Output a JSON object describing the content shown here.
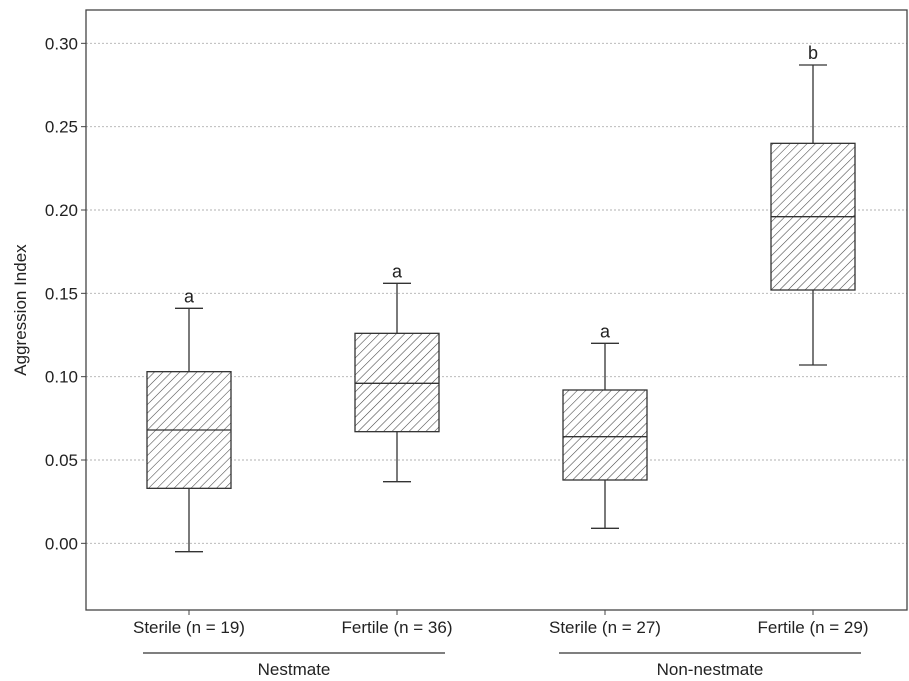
{
  "chart_data": {
    "type": "boxplot",
    "ylabel": "Aggression Index",
    "ylim": [
      -0.04,
      0.32
    ],
    "yticks": [
      "0.00",
      "0.05",
      "0.10",
      "0.15",
      "0.20",
      "0.25",
      "0.30"
    ],
    "ytick_values": [
      0.0,
      0.05,
      0.1,
      0.15,
      0.2,
      0.25,
      0.3
    ],
    "grid": true,
    "categories": [
      "Sterile (n = 19)",
      "Fertile (n = 36)",
      "Sterile (n = 27)",
      "Fertile (n = 29)"
    ],
    "groups": [
      {
        "label": "Nestmate",
        "categories": [
          0,
          1
        ]
      },
      {
        "label": "Non-nestmate",
        "categories": [
          2,
          3
        ]
      }
    ],
    "boxes": [
      {
        "whisker_low": -0.005,
        "q1": 0.033,
        "median": 0.068,
        "q3": 0.103,
        "whisker_high": 0.141,
        "letter": "a"
      },
      {
        "whisker_low": 0.037,
        "q1": 0.067,
        "median": 0.096,
        "q3": 0.126,
        "whisker_high": 0.156,
        "letter": "a"
      },
      {
        "whisker_low": 0.009,
        "q1": 0.038,
        "median": 0.064,
        "q3": 0.092,
        "whisker_high": 0.12,
        "letter": "a"
      },
      {
        "whisker_low": 0.107,
        "q1": 0.152,
        "median": 0.196,
        "q3": 0.24,
        "whisker_high": 0.287,
        "letter": "b"
      }
    ],
    "box_fill": "hatched",
    "colors": {
      "line": "#333333",
      "grid": "#b0b0b0",
      "hatch": "#444444"
    }
  }
}
